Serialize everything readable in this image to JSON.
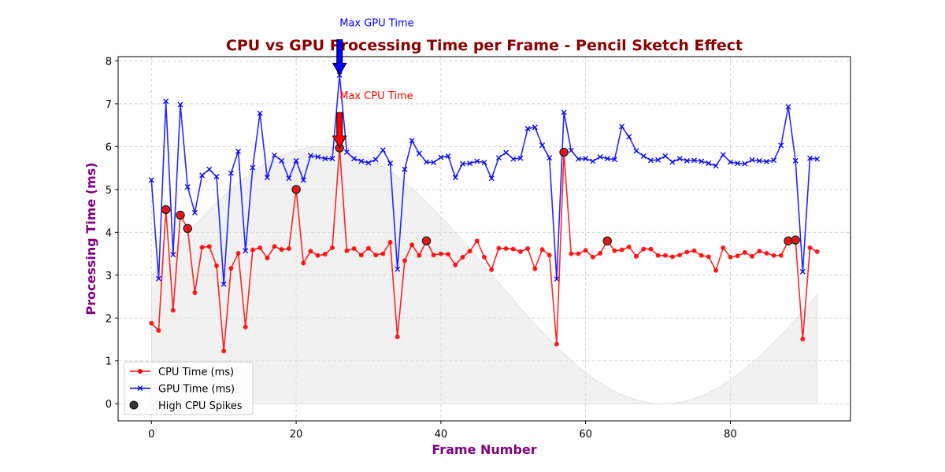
{
  "chart_data": {
    "type": "line",
    "title": "CPU vs GPU Processing Time per Frame - Pencil Sketch Effect",
    "xlabel": "Frame Number",
    "ylabel": "Processing Time (ms)",
    "xlim": [
      -4.6,
      96.6
    ],
    "ylim": [
      -0.4,
      8.1
    ],
    "x_ticks": [
      0,
      20,
      40,
      60,
      80
    ],
    "y_ticks": [
      0,
      1,
      2,
      3,
      4,
      5,
      6,
      7,
      8
    ],
    "grid": true,
    "legend_position": "lower-left",
    "colors": {
      "title": "#8b0000",
      "axis_label": "#800080",
      "cpu": "#ff0000",
      "gpu": "#0000ff",
      "spikes": "#222222",
      "background_wave": "#e6e6e6"
    },
    "series": [
      {
        "name": "CPU Time (ms)",
        "marker": "circle",
        "values": [
          1.88,
          1.71,
          4.53,
          2.18,
          4.4,
          4.09,
          2.59,
          3.65,
          3.67,
          3.22,
          1.23,
          3.16,
          3.51,
          1.79,
          3.59,
          3.64,
          3.4,
          3.67,
          3.6,
          3.62,
          5.0,
          3.28,
          3.56,
          3.46,
          3.49,
          3.64,
          5.97,
          3.57,
          3.62,
          3.47,
          3.63,
          3.47,
          3.5,
          3.77,
          1.56,
          3.34,
          3.71,
          3.46,
          3.8,
          3.47,
          3.5,
          3.49,
          3.24,
          3.42,
          3.56,
          3.8,
          3.42,
          3.13,
          3.63,
          3.62,
          3.61,
          3.55,
          3.62,
          3.15,
          3.6,
          3.47,
          1.39,
          5.87,
          3.5,
          3.5,
          3.58,
          3.42,
          3.51,
          3.8,
          3.57,
          3.59,
          3.66,
          3.44,
          3.61,
          3.61,
          3.46,
          3.46,
          3.43,
          3.47,
          3.54,
          3.57,
          3.46,
          3.43,
          3.11,
          3.64,
          3.42,
          3.45,
          3.53,
          3.44,
          3.56,
          3.51,
          3.46,
          3.46,
          3.8,
          3.82,
          1.51,
          3.64,
          3.55
        ]
      },
      {
        "name": "GPU Time (ms)",
        "marker": "x",
        "values": [
          5.22,
          2.92,
          7.06,
          3.48,
          6.98,
          5.06,
          4.46,
          5.33,
          5.47,
          5.3,
          2.79,
          5.38,
          5.89,
          3.57,
          5.51,
          6.78,
          5.28,
          5.8,
          5.67,
          5.26,
          5.67,
          5.22,
          5.79,
          5.76,
          5.72,
          5.72,
          7.67,
          5.87,
          5.72,
          5.66,
          5.62,
          5.7,
          5.92,
          5.61,
          3.14,
          5.47,
          6.14,
          5.84,
          5.64,
          5.63,
          5.75,
          5.78,
          5.28,
          5.6,
          5.61,
          5.66,
          5.63,
          5.26,
          5.74,
          5.86,
          5.71,
          5.73,
          6.42,
          6.45,
          6.03,
          5.74,
          2.91,
          6.8,
          5.91,
          5.71,
          5.72,
          5.66,
          5.76,
          5.72,
          5.7,
          6.47,
          6.23,
          5.9,
          5.78,
          5.68,
          5.69,
          5.78,
          5.64,
          5.72,
          5.67,
          5.68,
          5.66,
          5.61,
          5.55,
          5.81,
          5.64,
          5.61,
          5.6,
          5.69,
          5.67,
          5.65,
          5.68,
          6.03,
          6.93,
          5.67,
          3.08,
          5.73,
          5.71
        ]
      },
      {
        "name": "High CPU Spikes",
        "marker": "circle",
        "points": [
          [
            2,
            4.53
          ],
          [
            4,
            4.4
          ],
          [
            5,
            4.09
          ],
          [
            20,
            5.0
          ],
          [
            26,
            5.97
          ],
          [
            38,
            3.8
          ],
          [
            57,
            5.87
          ],
          [
            63,
            3.8
          ],
          [
            88,
            3.8
          ],
          [
            89,
            3.82
          ]
        ]
      }
    ],
    "background_wave": {
      "formula": "3*sin(x/15)+3",
      "x_range": [
        0,
        92
      ]
    },
    "annotations": [
      {
        "label": "Max GPU Time",
        "x": 26,
        "y": 7.67,
        "text_x": 26,
        "text_y": 8.9,
        "color": "#0000ff"
      },
      {
        "label": "Max CPU Time",
        "x": 26,
        "y": 5.97,
        "text_x": 26,
        "text_y": 7.2,
        "color": "#ff0000"
      }
    ]
  }
}
